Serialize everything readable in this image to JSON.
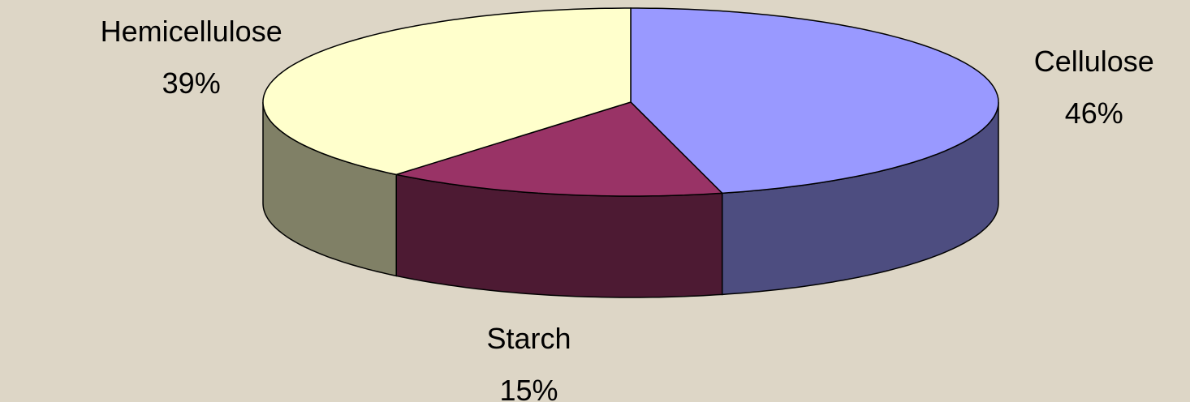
{
  "chart_data": {
    "type": "pie",
    "categories": [
      "Cellulose",
      "Starch",
      "Hemicellulose"
    ],
    "values": [
      46,
      15,
      39
    ],
    "value_labels": [
      "46%",
      "15%",
      "39%"
    ],
    "colors": [
      "#9999ff",
      "#993366",
      "#ffffcc"
    ]
  }
}
